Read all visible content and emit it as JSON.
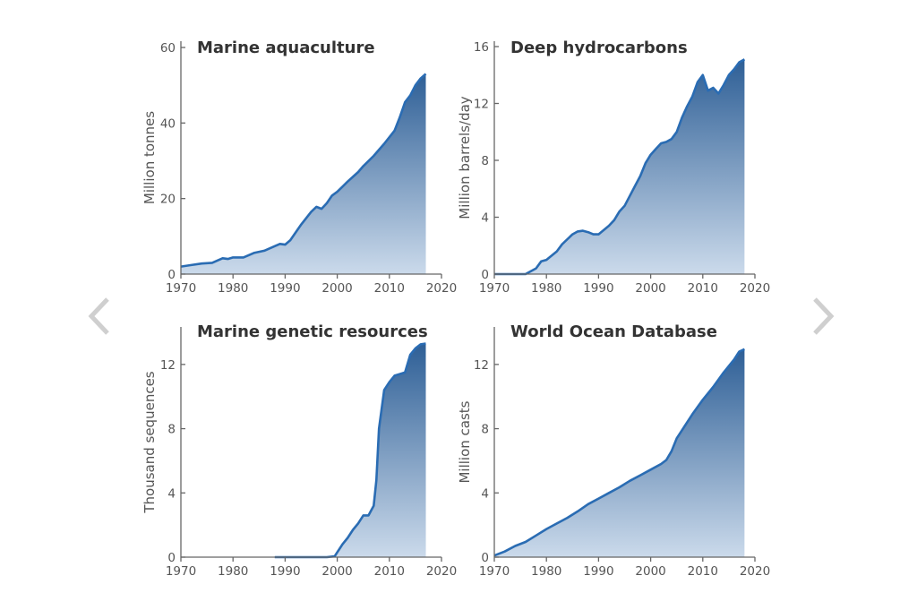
{
  "navigation": {
    "prev_icon": "chevron-left-icon",
    "next_icon": "chevron-right-icon"
  },
  "colors": {
    "line": "#2a6cb3",
    "fill_top": "#2e5f96",
    "fill_bottom": "#cbdaeb",
    "nav_arrow": "#cfcfcf"
  },
  "chart_data": [
    {
      "type": "area",
      "title": "Marine aquaculture",
      "ylabel": "Million tonnes",
      "xlim": [
        1970,
        2020
      ],
      "ylim": [
        0,
        60
      ],
      "xticks": [
        "1970",
        "1980",
        "1990",
        "2000",
        "2010",
        "2020"
      ],
      "yticks": [
        "0",
        "20",
        "40",
        "60"
      ],
      "x": [
        1970,
        1972,
        1974,
        1976,
        1978,
        1979,
        1980,
        1982,
        1984,
        1986,
        1988,
        1989,
        1990,
        1991,
        1993,
        1995,
        1996,
        1997,
        1998,
        1999,
        2000,
        2002,
        2004,
        2005,
        2007,
        2009,
        2011,
        2012,
        2013,
        2014,
        2015,
        2016,
        2017
      ],
      "y": [
        2,
        2.4,
        2.8,
        3,
        4.2,
        4,
        4.4,
        4.4,
        5.6,
        6.2,
        7.4,
        8,
        7.8,
        9,
        13,
        16.5,
        17.8,
        17.3,
        18.8,
        20.8,
        21.8,
        24.5,
        27,
        28.6,
        31.3,
        34.5,
        38,
        41.5,
        45.5,
        47.3,
        50,
        51.8,
        53
      ]
    },
    {
      "type": "area",
      "title": "Deep hydrocarbons",
      "ylabel": "Million barrels/day",
      "xlim": [
        1970,
        2020
      ],
      "ylim": [
        0,
        16
      ],
      "xticks": [
        "1970",
        "1980",
        "1990",
        "2000",
        "2010",
        "2020"
      ],
      "yticks": [
        "0",
        "4",
        "8",
        "12",
        "16"
      ],
      "x": [
        1970,
        1976,
        1978,
        1979,
        1980,
        1982,
        1983,
        1985,
        1986,
        1987,
        1988,
        1989,
        1990,
        1992,
        1993,
        1994,
        1995,
        1996,
        1997,
        1998,
        1999,
        2000,
        2001,
        2002,
        2003,
        2004,
        2005,
        2006,
        2007,
        2008,
        2009,
        2010,
        2011,
        2012,
        2013,
        2014,
        2015,
        2016,
        2017,
        2018
      ],
      "y": [
        0,
        0,
        0.4,
        0.9,
        1,
        1.6,
        2.1,
        2.8,
        3,
        3.05,
        2.95,
        2.8,
        2.8,
        3.4,
        3.8,
        4.4,
        4.8,
        5.5,
        6.2,
        6.9,
        7.8,
        8.4,
        8.8,
        9.2,
        9.3,
        9.5,
        10,
        11,
        11.8,
        12.5,
        13.5,
        14,
        12.9,
        13.1,
        12.7,
        13.3,
        14,
        14.4,
        14.9,
        15.1
      ]
    },
    {
      "type": "area",
      "title": "Marine genetic resources",
      "ylabel": "Thousand sequences",
      "xlim": [
        1970,
        2020
      ],
      "ylim": [
        0,
        14
      ],
      "xticks": [
        "1970",
        "1980",
        "1990",
        "2000",
        "2010",
        "2020"
      ],
      "yticks": [
        "0",
        "4",
        "8",
        "12"
      ],
      "x": [
        1988,
        1998,
        1999.5,
        2000,
        2001,
        2002,
        2003,
        2004,
        2005,
        2006,
        2007,
        2007.5,
        2008,
        2009,
        2010,
        2011,
        2012,
        2013,
        2014,
        2015,
        2016,
        2017
      ],
      "y": [
        0,
        0,
        0.05,
        0.3,
        0.8,
        1.2,
        1.7,
        2.1,
        2.6,
        2.6,
        3.2,
        4.8,
        8,
        10.4,
        10.9,
        11.3,
        11.4,
        11.5,
        12.6,
        13,
        13.25,
        13.3
      ]
    },
    {
      "type": "area",
      "title": "World Ocean Database",
      "ylabel": "Million casts",
      "xlim": [
        1970,
        2020
      ],
      "ylim": [
        0,
        14
      ],
      "xticks": [
        "1970",
        "1980",
        "1990",
        "2000",
        "2010",
        "2020"
      ],
      "yticks": [
        "0",
        "4",
        "8",
        "12"
      ],
      "x": [
        1970,
        1972,
        1974,
        1976,
        1978,
        1980,
        1982,
        1984,
        1986,
        1988,
        1990,
        1992,
        1994,
        1996,
        1998,
        2000,
        2002,
        2003,
        2004,
        2005,
        2006,
        2008,
        2010,
        2012,
        2014,
        2016,
        2017,
        2018
      ],
      "y": [
        0.1,
        0.35,
        0.7,
        0.95,
        1.35,
        1.75,
        2.1,
        2.45,
        2.85,
        3.3,
        3.65,
        4,
        4.35,
        4.75,
        5.1,
        5.45,
        5.8,
        6.05,
        6.6,
        7.4,
        7.9,
        8.9,
        9.8,
        10.6,
        11.5,
        12.3,
        12.8,
        12.95
      ]
    }
  ]
}
